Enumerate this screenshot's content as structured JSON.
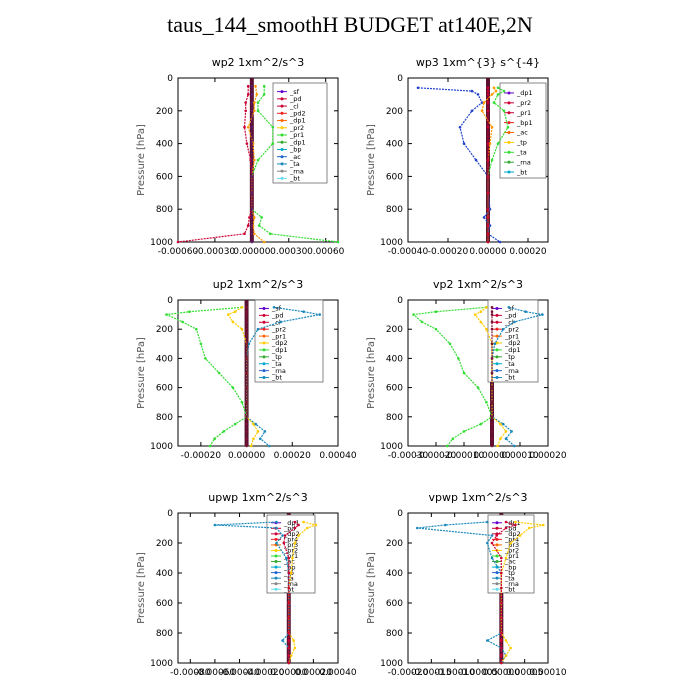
{
  "title": "taus_144_smoothH  BUDGET at140E,2N",
  "chart_data": [
    {
      "type": "line",
      "title": "wp2   1xm^2/s^3",
      "ylabel": "Pressure [hPa]",
      "y": [
        50,
        100,
        150,
        200,
        300,
        400,
        500,
        600,
        700,
        800,
        850,
        900,
        950,
        1000
      ],
      "yticks": [
        0,
        200,
        400,
        600,
        800,
        1000
      ],
      "xlim": [
        -0.0006,
        0.0007
      ],
      "xticks": [
        -0.0006,
        -0.0003,
        0,
        0.0003,
        0.0006
      ],
      "xtick_labels": [
        "-0.00060",
        "-0.00030",
        "0.00000",
        "0.00030",
        "0.00060"
      ],
      "legend": [
        "_sf",
        "_pd",
        "_cl",
        "_pd2",
        "_dp1",
        "_pr2",
        "_pr1",
        "_dp1",
        "_bp",
        "_ac",
        "_ta",
        "_rna",
        "_bt"
      ],
      "series": [
        {
          "name": "_pr1",
          "color": "#33dd33",
          "values": [
            0.0001,
            0.0001,
            5e-05,
            5e-05,
            0.00017,
            0.00017,
            5e-05,
            0.0,
            0.0,
            0.0,
            8e-05,
            6e-05,
            0.00015,
            0.0007
          ]
        },
        {
          "name": "_pd",
          "color": "#cc0033",
          "values": [
            -3e-05,
            -3e-05,
            -5e-05,
            -5e-05,
            -6e-05,
            -4e-05,
            -1e-05,
            0.0,
            0.0,
            0.0,
            -2e-05,
            -3e-05,
            -6e-05,
            -0.0006
          ]
        },
        {
          "name": "_pr2",
          "color": "#ff9900",
          "values": [
            3e-05,
            4e-05,
            2e-05,
            2e-05,
            -3e-05,
            1e-05,
            2e-05,
            0.0,
            0.0,
            0.0,
            2e-05,
            1e-05,
            2e-05,
            0.0001
          ]
        },
        {
          "name": "_cl",
          "color": "#5a1a6a",
          "values": [
            0.0,
            0.0,
            0.0,
            0.0,
            0.0,
            0.0,
            0.0,
            0.0,
            0.0,
            0.0,
            0.0,
            0.0,
            0.0,
            0.0
          ]
        }
      ]
    },
    {
      "type": "line",
      "title": "wp3   1xm^{3} s^{-4}",
      "ylabel": "Pressure [hPa]",
      "y": [
        60,
        80,
        100,
        150,
        200,
        300,
        400,
        500,
        600,
        700,
        800,
        850,
        900,
        950,
        1000
      ],
      "yticks": [
        0,
        200,
        400,
        600,
        800,
        1000
      ],
      "xlim": [
        -0.0004,
        0.0003
      ],
      "xticks": [
        -0.0004,
        -0.0002,
        0,
        0.0002
      ],
      "xtick_labels": [
        "-0.00040",
        "-0.00020",
        "0.00000",
        "0.00020"
      ],
      "legend": [
        "_dp1",
        "_pr2",
        "_pr1",
        "_bp1",
        "_ac",
        "_tp",
        "_ta",
        "_rna",
        "_bt"
      ],
      "series": [
        {
          "name": "_ta",
          "color": "#2244cc",
          "values": [
            -0.00035,
            -8e-05,
            -5e-05,
            -3e-05,
            -8e-05,
            -0.00014,
            -0.00012,
            -6e-05,
            0.0,
            0.0,
            1e-05,
            -2e-05,
            1e-05,
            0.0,
            6e-05
          ]
        },
        {
          "name": "_pr1",
          "color": "#33dd33",
          "values": [
            5e-05,
            8e-05,
            5e-05,
            3e-05,
            8e-05,
            0.0001,
            5e-05,
            2e-05,
            0.0,
            0.0,
            0.0,
            0.0,
            0.0,
            0.0,
            0.0
          ]
        },
        {
          "name": "_pr2",
          "color": "#ff9900",
          "values": [
            3e-05,
            4e-05,
            2e-05,
            -2e-05,
            -3e-05,
            2e-05,
            1e-05,
            0.0,
            0.0,
            0.0,
            0.0,
            0.0,
            0.0,
            0.0,
            0.0
          ]
        },
        {
          "name": "_dp1",
          "color": "#cc0033",
          "values": [
            0.0,
            0.0,
            0.0,
            0.0,
            0.0,
            0.0,
            0.0,
            0.0,
            0.0,
            0.0,
            0.0,
            0.0,
            0.0,
            0.0,
            0.0
          ]
        }
      ]
    },
    {
      "type": "line",
      "title": "up2   1xm^2/s^3",
      "ylabel": "Pressure [hPa]",
      "y": [
        50,
        80,
        100,
        150,
        200,
        300,
        400,
        500,
        600,
        700,
        800,
        850,
        900,
        950,
        1000
      ],
      "yticks": [
        0,
        200,
        400,
        600,
        800,
        1000
      ],
      "xlim": [
        -0.0003,
        0.0004
      ],
      "xticks": [
        -0.0002,
        0,
        0.0002,
        0.0004
      ],
      "xtick_labels": [
        "-0.00020",
        "0.00000",
        "0.00020",
        "0.00040"
      ],
      "legend": [
        "_sf",
        "_pd",
        "_cl",
        "_pr2",
        "_pr1",
        "_dp2",
        "_dp1",
        "_tp",
        "_ta",
        "_rna",
        "_bt"
      ],
      "series": [
        {
          "name": "_dp2",
          "color": "#33dd33",
          "values": [
            -2e-05,
            -0.00025,
            -0.00035,
            -0.00028,
            -0.00022,
            -0.0002,
            -0.00018,
            -0.00012,
            -6e-05,
            -2e-05,
            0.0,
            -5e-05,
            -0.0001,
            -0.00014,
            -0.00016
          ]
        },
        {
          "name": "_ta",
          "color": "#1a88bb",
          "values": [
            0.00012,
            0.00025,
            0.00032,
            0.00015,
            5e-05,
            1e-05,
            0.0,
            0.0,
            0.0,
            0.0,
            0.0,
            4e-05,
            8e-05,
            6e-05,
            0.0001
          ]
        },
        {
          "name": "_pr2",
          "color": "#ffcc00",
          "values": [
            -2e-05,
            -5e-05,
            -8e-05,
            -6e-05,
            -2e-05,
            0.0,
            0.0,
            0.0,
            0.0,
            0.0,
            0.0,
            3e-05,
            5e-05,
            3e-05,
            2e-05
          ]
        },
        {
          "name": "_pd",
          "color": "#7a1030",
          "values": [
            0.0,
            0.0,
            0.0,
            0.0,
            0.0,
            0.0,
            0.0,
            0.0,
            0.0,
            0.0,
            0.0,
            0.0,
            0.0,
            0.0,
            0.0
          ]
        }
      ]
    },
    {
      "type": "line",
      "title": "vp2   1xm^2/s^3",
      "ylabel": "Pressure [hPa]",
      "y": [
        50,
        80,
        100,
        150,
        200,
        300,
        400,
        500,
        600,
        700,
        800,
        850,
        900,
        950,
        1000
      ],
      "yticks": [
        0,
        200,
        400,
        600,
        800,
        1000
      ],
      "xlim": [
        -0.0003,
        0.0002
      ],
      "xticks": [
        -0.0003,
        -0.0002,
        -0.0001,
        0,
        0.0001,
        0.0002
      ],
      "xtick_labels": [
        "-0.00030",
        "-0.00020",
        "-0.00010",
        "0.00000",
        "0.00010",
        "0.00020"
      ],
      "legend": [
        "_sf",
        "_pd",
        "_cl",
        "_pr2",
        "_pr1",
        "_dp2",
        "_dp1",
        "_tp",
        "_ta",
        "_rna",
        "_bt"
      ],
      "series": [
        {
          "name": "_dp2",
          "color": "#33dd33",
          "values": [
            -2e-05,
            -0.0002,
            -0.00028,
            -0.00025,
            -0.0002,
            -0.00015,
            -0.00012,
            -0.0001,
            -5e-05,
            -2e-05,
            0.0,
            -4e-05,
            -0.0001,
            -0.00014,
            -0.00016
          ]
        },
        {
          "name": "_ta",
          "color": "#1a88bb",
          "values": [
            6e-05,
            0.00012,
            0.00018,
            8e-05,
            4e-05,
            1e-05,
            0.0,
            0.0,
            0.0,
            0.0,
            0.0,
            4e-05,
            7e-05,
            5e-05,
            8e-05
          ]
        },
        {
          "name": "_pr2",
          "color": "#ffcc00",
          "values": [
            -2e-05,
            -4e-05,
            -6e-05,
            -4e-05,
            -2e-05,
            0.0,
            0.0,
            0.0,
            0.0,
            0.0,
            0.0,
            3e-05,
            5e-05,
            3e-05,
            2e-05
          ]
        },
        {
          "name": "_pd",
          "color": "#7a1030",
          "values": [
            0.0,
            0.0,
            0.0,
            0.0,
            0.0,
            0.0,
            0.0,
            0.0,
            0.0,
            0.0,
            0.0,
            0.0,
            0.0,
            0.0,
            0.0
          ]
        }
      ]
    },
    {
      "type": "line",
      "title": "upwp   1xm^2/s^3",
      "ylabel": "Pressure [hPa]",
      "y": [
        60,
        80,
        100,
        150,
        200,
        300,
        400,
        500,
        600,
        700,
        800,
        850,
        900,
        950,
        1000
      ],
      "yticks": [
        0,
        200,
        400,
        600,
        800,
        1000
      ],
      "xlim": [
        -0.0009,
        0.0004
      ],
      "xticks": [
        -0.0008,
        -0.0006,
        -0.0004,
        -0.0002,
        0,
        0.0002,
        0.0004
      ],
      "xtick_labels": [
        "-0.00080",
        "-0.00060",
        "-0.00040",
        "-0.00020",
        "0.00000",
        "0.00020",
        "0.00040"
      ],
      "legend": [
        "_dp1",
        "_pd",
        "_dp2",
        "_pr4",
        "_pr3",
        "_pr2",
        "_pr1",
        "_ac",
        "_bp",
        "_tp",
        "_ta",
        "_rna",
        "_bt"
      ],
      "series": [
        {
          "name": "_ta",
          "color": "#1a88bb",
          "values": [
            -0.0001,
            -0.0006,
            -0.0001,
            -5e-05,
            -0.0001,
            -2e-05,
            0.0,
            0.0,
            0.0,
            0.0,
            0.0,
            -5e-05,
            0.0,
            0.0,
            0.0
          ]
        },
        {
          "name": "_pr2",
          "color": "#ffcc00",
          "values": [
            0.00012,
            0.00022,
            0.00015,
            8e-05,
            5e-05,
            3e-05,
            2e-05,
            0.0,
            0.0,
            0.0,
            0.0,
            4e-05,
            5e-05,
            2e-05,
            0.0
          ]
        },
        {
          "name": "_dp1",
          "color": "#cc0033",
          "values": [
            5e-05,
            8e-05,
            5e-05,
            -3e-05,
            -4e-05,
            0.0,
            0.0,
            0.0,
            0.0,
            0.0,
            0.0,
            0.0,
            0.0,
            0.0,
            0.0
          ]
        }
      ]
    },
    {
      "type": "line",
      "title": "vpwp   1xm^2/s^3",
      "ylabel": "Pressure [hPa]",
      "y": [
        60,
        80,
        100,
        150,
        200,
        300,
        400,
        500,
        600,
        700,
        800,
        850,
        900,
        950,
        1000
      ],
      "yticks": [
        0,
        200,
        400,
        600,
        800,
        1000
      ],
      "xlim": [
        -0.0002,
        0.0001
      ],
      "xticks": [
        -0.0002,
        -0.00015,
        -0.0001,
        -5e-05,
        0,
        5e-05,
        0.0001
      ],
      "xtick_labels": [
        "-0.00020",
        "-0.00015",
        "-0.00010",
        "-0.00005",
        "0.00000",
        "0.00005",
        "0.00010"
      ],
      "legend": [
        "_dp1",
        "_pd",
        "_dp2",
        "_pr4",
        "_pr3",
        "_pr2",
        "_pr1",
        "_ac",
        "_bp",
        "_tp",
        "_ta",
        "_rna",
        "_bt"
      ],
      "series": [
        {
          "name": "_ta",
          "color": "#1a88bb",
          "values": [
            -3e-05,
            -0.00012,
            -0.00018,
            -2e-05,
            -3e-05,
            -2e-05,
            0.0,
            0.0,
            0.0,
            0.0,
            0.0,
            -3e-05,
            0.0,
            1e-05,
            0.0
          ]
        },
        {
          "name": "_pr2",
          "color": "#ffcc00",
          "values": [
            3e-05,
            9e-05,
            6e-05,
            4e-05,
            2e-05,
            1e-05,
            0.0,
            0.0,
            0.0,
            0.0,
            0.0,
            1e-05,
            2e-05,
            1e-05,
            0.0
          ]
        },
        {
          "name": "_dp1",
          "color": "#cc0033",
          "values": [
            1e-05,
            3e-05,
            1e-05,
            -1e-05,
            -2e-05,
            0.0,
            0.0,
            0.0,
            0.0,
            0.0,
            0.0,
            0.0,
            0.0,
            0.0,
            0.0
          ]
        }
      ]
    }
  ]
}
